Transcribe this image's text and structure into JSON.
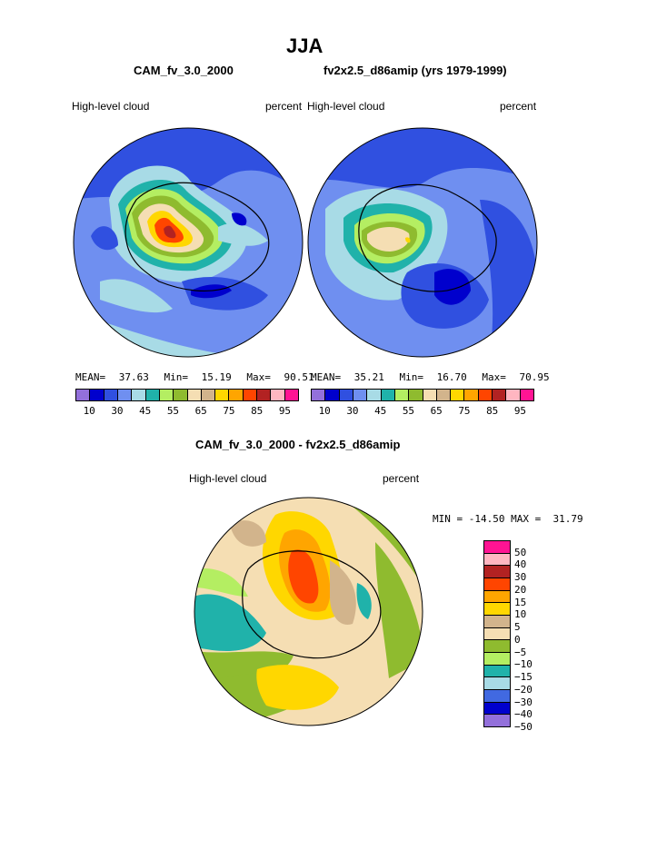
{
  "page": {
    "title": "JJA"
  },
  "chart_data": [
    {
      "type": "heatmap",
      "projection": "polar-stereographic-south",
      "title": "CAM_fv_3.0_2000",
      "left_label": "High-level cloud",
      "right_label": "percent",
      "stats": {
        "mean_label": "MEAN=",
        "mean": "37.63",
        "min_label": "Min=",
        "min": "15.19",
        "max_label": "Max=",
        "max": "90.51"
      },
      "levels": [
        10,
        15,
        20,
        25,
        30,
        35,
        40,
        45,
        50,
        55,
        60,
        65,
        70,
        75,
        80,
        85,
        90,
        95
      ],
      "tick_labels": [
        "10",
        "30",
        "45",
        "55",
        "65",
        "75",
        "85",
        "95"
      ]
    },
    {
      "type": "heatmap",
      "projection": "polar-stereographic-south",
      "title": "fv2x2.5_d86amip (yrs 1979-1999)",
      "left_label": "High-level cloud",
      "right_label": "percent",
      "stats": {
        "mean_label": "MEAN=",
        "mean": "35.21",
        "min_label": "Min=",
        "min": "16.70",
        "max_label": "Max=",
        "max": "70.95"
      },
      "levels": [
        10,
        15,
        20,
        25,
        30,
        35,
        40,
        45,
        50,
        55,
        60,
        65,
        70,
        75,
        80,
        85,
        90,
        95
      ],
      "tick_labels": [
        "10",
        "30",
        "45",
        "55",
        "65",
        "75",
        "85",
        "95"
      ]
    },
    {
      "type": "heatmap",
      "projection": "polar-stereographic-south",
      "title": "CAM_fv_3.0_2000 - fv2x2.5_d86amip",
      "left_label": "High-level cloud",
      "right_label": "percent",
      "stats": {
        "text": "MIN = -14.50 MAX =  31.79",
        "min": -14.5,
        "max": 31.79
      },
      "levels": [
        50,
        40,
        30,
        20,
        15,
        10,
        5,
        0,
        -5,
        -10,
        -15,
        -20,
        -30,
        -40,
        -50
      ],
      "tick_labels": [
        "50",
        "40",
        "30",
        "20",
        "15",
        "10",
        "5",
        "0",
        "−5",
        "−10",
        "−15",
        "−20",
        "−30",
        "−40",
        "−50"
      ]
    }
  ],
  "colors": {
    "abs_scale": [
      "#9370db",
      "#0000cd",
      "#3050e0",
      "#6f8ff0",
      "#a8dbe6",
      "#20b2aa",
      "#b4ee62",
      "#8fbb2f",
      "#f5deb3",
      "#d2b48c",
      "#ffd700",
      "#ffa500",
      "#ff4500",
      "#b22222",
      "#ffb6c1",
      "#ff1493"
    ],
    "diff_scale": [
      "#ff1493",
      "#ffb6c1",
      "#b22222",
      "#ff4500",
      "#ffa500",
      "#ffd700",
      "#d2b48c",
      "#f5deb3",
      "#8fbb2f",
      "#b4ee62",
      "#20b2aa",
      "#a8dbe6",
      "#4169e1",
      "#0000cd",
      "#9370db"
    ]
  }
}
